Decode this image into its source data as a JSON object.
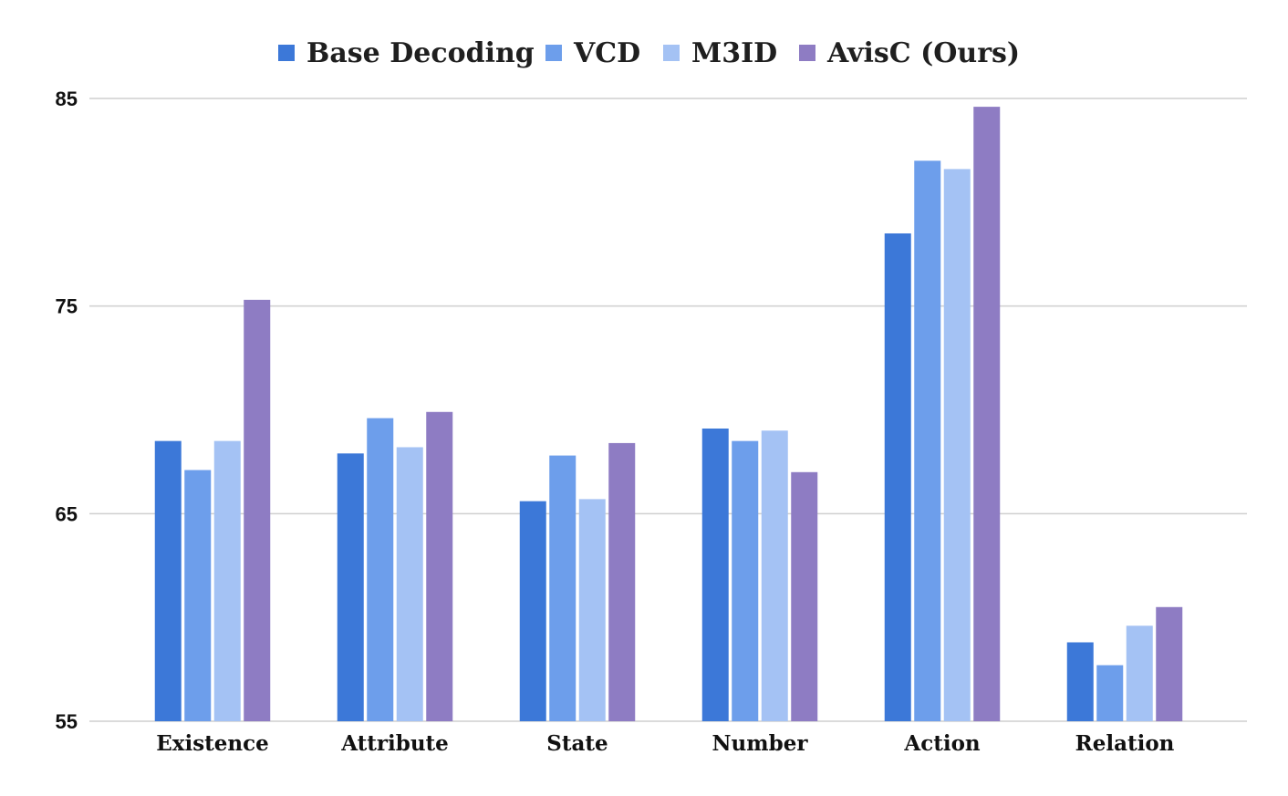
{
  "chart_data": {
    "type": "bar",
    "title": "",
    "xlabel": "",
    "ylabel": "",
    "categories": [
      "Existence",
      "Attribute",
      "State",
      "Number",
      "Action",
      "Relation"
    ],
    "series": [
      {
        "name": "Base Decoding",
        "color": "#3c78d8",
        "values": [
          68.5,
          67.9,
          65.6,
          69.1,
          78.5,
          58.8
        ]
      },
      {
        "name": "VCD",
        "color": "#6d9eeb",
        "values": [
          67.1,
          69.6,
          67.8,
          68.5,
          82.0,
          57.7
        ]
      },
      {
        "name": "M3ID",
        "color": "#a4c2f4",
        "values": [
          68.5,
          68.2,
          65.7,
          69.0,
          81.6,
          59.6
        ]
      },
      {
        "name": "AvisC (Ours)",
        "color": "#8e7cc3",
        "values": [
          75.3,
          69.9,
          68.4,
          67.0,
          84.6,
          60.5
        ]
      }
    ],
    "ylim": [
      55,
      85
    ],
    "yticks": [
      55,
      65,
      75,
      85
    ],
    "grid": true,
    "legend_position": "top"
  }
}
